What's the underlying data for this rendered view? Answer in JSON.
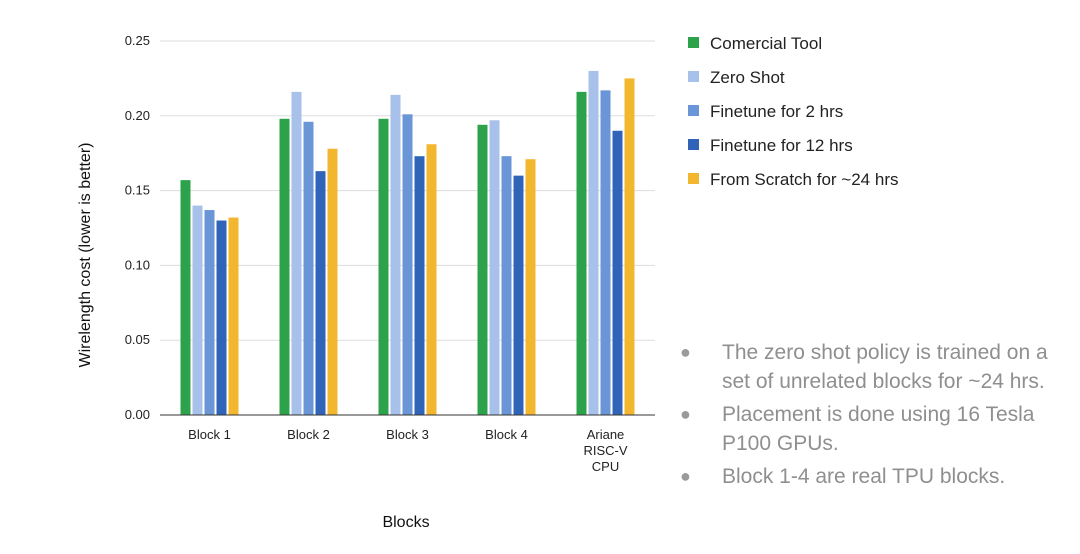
{
  "chart_data": {
    "type": "bar",
    "xlabel": "Blocks",
    "ylabel": "Wirelength cost (lower is better)",
    "ylim": [
      0,
      0.25
    ],
    "yticks": [
      "0.00",
      "0.05",
      "0.10",
      "0.15",
      "0.20",
      "0.25"
    ],
    "grid": true,
    "legend_position": "right",
    "categories": [
      [
        "Block 1"
      ],
      [
        "Block 2"
      ],
      [
        "Block 3"
      ],
      [
        "Block 4"
      ],
      [
        "Ariane",
        "RISC-V",
        "CPU"
      ]
    ],
    "series": [
      {
        "name": "Comercial Tool",
        "color": "#2ca24a",
        "values": [
          0.157,
          0.198,
          0.198,
          0.194,
          0.216
        ]
      },
      {
        "name": "Zero Shot",
        "color": "#a7c1ea",
        "values": [
          0.14,
          0.216,
          0.214,
          0.197,
          0.23
        ]
      },
      {
        "name": "Finetune for 2 hrs",
        "color": "#6a95d6",
        "values": [
          0.137,
          0.196,
          0.201,
          0.173,
          0.217
        ]
      },
      {
        "name": "Finetune for 12 hrs",
        "color": "#2f64b8",
        "values": [
          0.13,
          0.163,
          0.173,
          0.16,
          0.19
        ]
      },
      {
        "name": "From Scratch for ~24 hrs",
        "color": "#f2b72e",
        "values": [
          0.132,
          0.178,
          0.181,
          0.171,
          0.225
        ]
      }
    ]
  },
  "notes": [
    "The zero shot policy is trained on a set of unrelated blocks for ~24 hrs.",
    "Placement is done using 16 Tesla P100 GPUs.",
    "Block 1-4 are real TPU blocks."
  ],
  "bullet_char": "●"
}
